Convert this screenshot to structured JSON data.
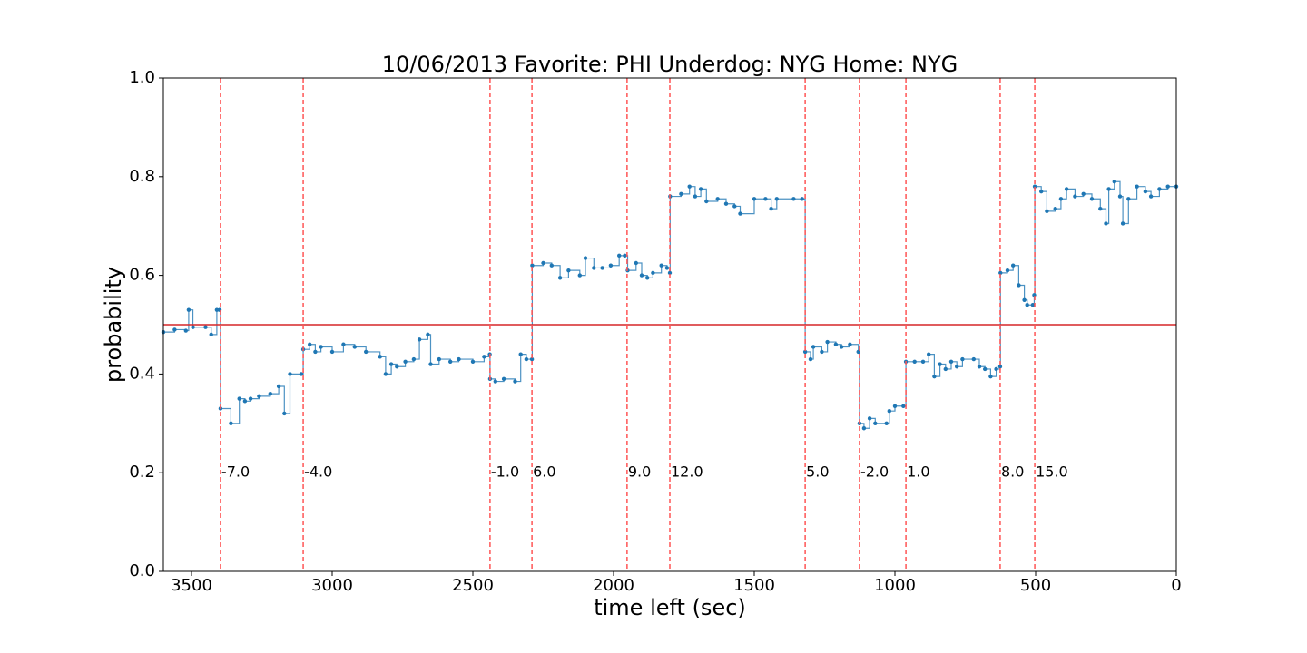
{
  "chart_data": {
    "type": "line",
    "title": "10/06/2013 Favorite: PHI Underdog: NYG Home: NYG",
    "xlabel": "time left (sec)",
    "ylabel": "probability",
    "xlim": [
      3600,
      0
    ],
    "ylim": [
      0,
      1
    ],
    "xticks": [
      3500,
      3000,
      2500,
      2000,
      1500,
      1000,
      500,
      0
    ],
    "yticks": [
      {
        "value": 0,
        "label": "0.0"
      },
      {
        "value": 0.2,
        "label": "0.2"
      },
      {
        "value": 0.4,
        "label": "0.4"
      },
      {
        "value": 0.6,
        "label": "0.6"
      },
      {
        "value": 0.8,
        "label": "0.8"
      },
      {
        "value": 1,
        "label": "1.0"
      }
    ],
    "hline": {
      "value": 0.5,
      "color": "#d62728"
    },
    "event_color": "#ff5555",
    "annotations": [
      {
        "x": 3397,
        "y": 0.2,
        "text": "-7.0"
      },
      {
        "x": 3103,
        "y": 0.2,
        "text": "-4.0"
      },
      {
        "x": 2439,
        "y": 0.2,
        "text": "-1.0"
      },
      {
        "x": 2290,
        "y": 0.2,
        "text": "6.0"
      },
      {
        "x": 1952,
        "y": 0.2,
        "text": "9.0"
      },
      {
        "x": 1800,
        "y": 0.2,
        "text": "12.0"
      },
      {
        "x": 1319,
        "y": 0.2,
        "text": "5.0"
      },
      {
        "x": 1126,
        "y": 0.2,
        "text": "-2.0"
      },
      {
        "x": 961,
        "y": 0.2,
        "text": "1.0"
      },
      {
        "x": 626,
        "y": 0.2,
        "text": "8.0"
      },
      {
        "x": 503,
        "y": 0.2,
        "text": "15.0"
      }
    ],
    "x": [
      3600,
      3560,
      3520,
      3510,
      3495,
      3450,
      3430,
      3410,
      3400,
      3397,
      3360,
      3330,
      3310,
      3290,
      3260,
      3220,
      3190,
      3170,
      3150,
      3110,
      3103,
      3080,
      3060,
      3040,
      3000,
      2960,
      2920,
      2880,
      2830,
      2810,
      2790,
      2770,
      2740,
      2710,
      2690,
      2660,
      2650,
      2620,
      2580,
      2550,
      2500,
      2460,
      2440,
      2439,
      2420,
      2390,
      2350,
      2330,
      2310,
      2290,
      2289,
      2250,
      2220,
      2190,
      2160,
      2120,
      2100,
      2070,
      2040,
      2010,
      1980,
      1960,
      1950,
      1920,
      1900,
      1880,
      1860,
      1830,
      1810,
      1800,
      1799,
      1760,
      1730,
      1710,
      1690,
      1670,
      1630,
      1600,
      1570,
      1550,
      1500,
      1460,
      1440,
      1420,
      1360,
      1330,
      1319,
      1300,
      1290,
      1260,
      1240,
      1210,
      1190,
      1160,
      1130,
      1126,
      1110,
      1090,
      1070,
      1030,
      1020,
      1000,
      970,
      961,
      930,
      900,
      880,
      860,
      840,
      820,
      800,
      780,
      760,
      720,
      700,
      680,
      660,
      640,
      626,
      625,
      600,
      580,
      560,
      540,
      530,
      510,
      505,
      503,
      480,
      460,
      430,
      410,
      390,
      360,
      330,
      300,
      270,
      250,
      240,
      220,
      200,
      190,
      170,
      140,
      110,
      90,
      60,
      30,
      0
    ],
    "series": [
      {
        "name": "probability",
        "color": "#1f77b4",
        "values": [
          0.485,
          0.49,
          0.488,
          0.53,
          0.495,
          0.495,
          0.48,
          0.53,
          0.53,
          0.33,
          0.3,
          0.35,
          0.345,
          0.35,
          0.355,
          0.36,
          0.375,
          0.32,
          0.4,
          0.4,
          0.45,
          0.46,
          0.445,
          0.455,
          0.445,
          0.46,
          0.455,
          0.445,
          0.435,
          0.4,
          0.42,
          0.415,
          0.425,
          0.43,
          0.47,
          0.48,
          0.42,
          0.43,
          0.425,
          0.43,
          0.425,
          0.435,
          0.44,
          0.39,
          0.385,
          0.39,
          0.385,
          0.44,
          0.43,
          0.43,
          0.62,
          0.625,
          0.62,
          0.595,
          0.61,
          0.6,
          0.635,
          0.615,
          0.615,
          0.62,
          0.64,
          0.64,
          0.61,
          0.625,
          0.6,
          0.595,
          0.605,
          0.62,
          0.615,
          0.605,
          0.76,
          0.765,
          0.78,
          0.76,
          0.775,
          0.75,
          0.755,
          0.745,
          0.74,
          0.725,
          0.755,
          0.755,
          0.735,
          0.755,
          0.755,
          0.755,
          0.445,
          0.43,
          0.455,
          0.445,
          0.465,
          0.46,
          0.455,
          0.46,
          0.445,
          0.3,
          0.29,
          0.31,
          0.3,
          0.3,
          0.325,
          0.335,
          0.335,
          0.425,
          0.425,
          0.425,
          0.44,
          0.395,
          0.42,
          0.41,
          0.425,
          0.415,
          0.43,
          0.43,
          0.415,
          0.41,
          0.395,
          0.41,
          0.415,
          0.605,
          0.61,
          0.62,
          0.58,
          0.55,
          0.54,
          0.54,
          0.56,
          0.78,
          0.77,
          0.73,
          0.735,
          0.755,
          0.775,
          0.76,
          0.765,
          0.755,
          0.735,
          0.705,
          0.775,
          0.79,
          0.76,
          0.705,
          0.755,
          0.78,
          0.77,
          0.76,
          0.775,
          0.78,
          0.78
        ]
      }
    ]
  }
}
